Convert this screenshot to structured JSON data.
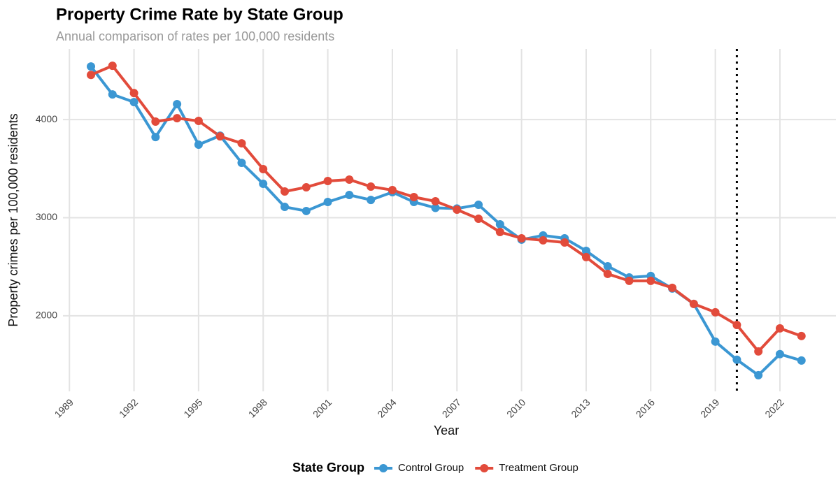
{
  "chart_data": {
    "type": "line",
    "title": "Property Crime Rate by State Group",
    "subtitle": "Annual comparison of rates per 100,000 residents",
    "x_label": "Year",
    "y_label": "Property crimes per 100,000 residents",
    "legend_title": "State Group",
    "legend_position": "bottom",
    "grid": true,
    "vline": 2020,
    "x": [
      1990,
      1991,
      1992,
      1993,
      1994,
      1995,
      1996,
      1997,
      1998,
      1999,
      2000,
      2001,
      2002,
      2003,
      2004,
      2005,
      2006,
      2007,
      2008,
      2009,
      2010,
      2011,
      2012,
      2013,
      2014,
      2015,
      2016,
      2017,
      2018,
      2019,
      2020,
      2021,
      2022,
      2023
    ],
    "series": [
      {
        "name": "Control Group",
        "color": "#3b97d3",
        "values": [
          4541,
          4256,
          4178,
          3822,
          4157,
          3744,
          3836,
          3559,
          3345,
          3110,
          3068,
          3160,
          3231,
          3181,
          3260,
          3160,
          3100,
          3093,
          3132,
          2932,
          2776,
          2819,
          2790,
          2662,
          2505,
          2391,
          2406,
          2278,
          2121,
          1737,
          1552,
          1395,
          1609,
          1544
        ]
      },
      {
        "name": "Treatment Group",
        "color": "#e24b3b",
        "values": [
          4455,
          4548,
          4270,
          3979,
          4014,
          3986,
          3829,
          3758,
          3495,
          3267,
          3310,
          3374,
          3388,
          3317,
          3281,
          3210,
          3167,
          3082,
          2989,
          2854,
          2790,
          2769,
          2747,
          2598,
          2427,
          2356,
          2356,
          2285,
          2121,
          2036,
          1907,
          1637,
          1872,
          1794
        ]
      }
    ],
    "xlim": [
      1988.7,
      2024.6
    ],
    "xticks": [
      1989,
      1992,
      1995,
      1998,
      2001,
      2004,
      2007,
      2010,
      2013,
      2016,
      2019,
      2022
    ],
    "ylim": [
      1230,
      4720
    ],
    "yticks": [
      2000,
      3000,
      4000
    ]
  }
}
